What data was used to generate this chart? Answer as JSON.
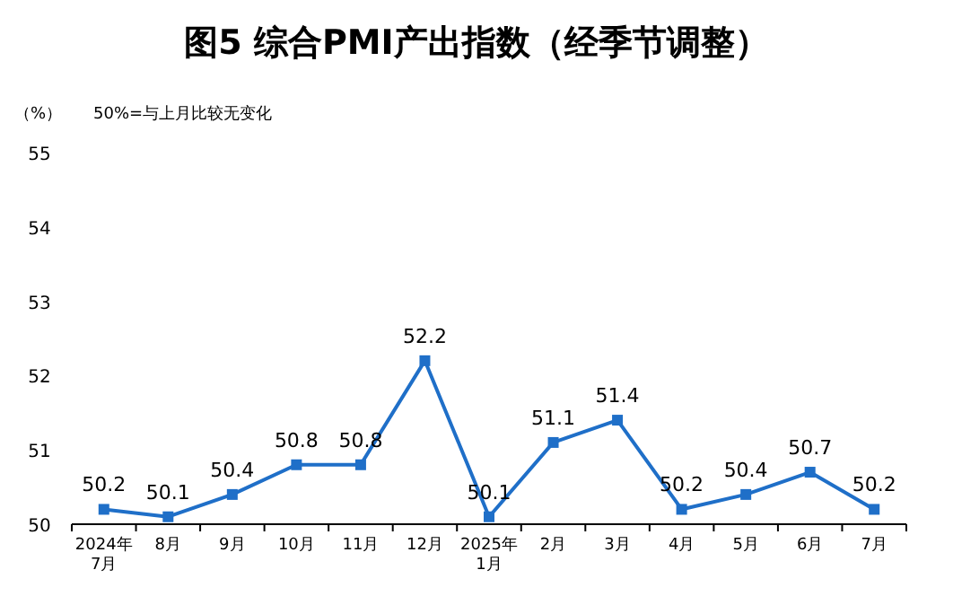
{
  "chart_data": {
    "type": "line",
    "title": "图5  综合PMI产出指数（经季节调整）",
    "ylabel": "（%）",
    "annotations": [
      "50%=与上月比较无变化"
    ],
    "categories": [
      "2024年\n7月",
      "8月",
      "9月",
      "10月",
      "11月",
      "12月",
      "2025年\n1月",
      "2月",
      "3月",
      "4月",
      "5月",
      "6月",
      "7月"
    ],
    "series": [
      {
        "color": "#1f6fc8",
        "values": [
          50.2,
          50.1,
          50.4,
          50.8,
          50.8,
          52.2,
          50.1,
          51.1,
          51.4,
          50.2,
          50.4,
          50.7,
          50.2
        ]
      }
    ],
    "ylim": [
      50,
      55
    ],
    "yticks": [
      50,
      51,
      52,
      53,
      54,
      55
    ],
    "data_labels": true,
    "marker": "square",
    "line_style": "solid",
    "grid": false
  }
}
